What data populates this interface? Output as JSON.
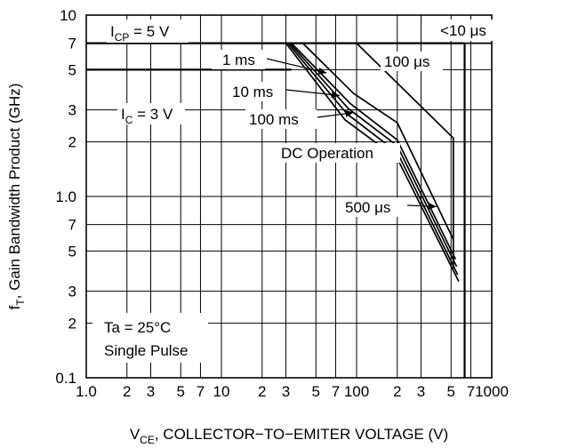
{
  "chart_data": {
    "type": "line",
    "xscale": "log",
    "yscale": "log",
    "xlim": [
      1,
      1000
    ],
    "ylim": [
      0.1,
      10
    ],
    "grid": true,
    "xlabel": {
      "main": "V",
      "sub": "CE",
      "rest": ", COLLECTOR−TO−EMITER VOLTAGE (V)"
    },
    "ylabel": {
      "main": "f",
      "sub": "T",
      "rest": ", Gain Bandwidth Product (GHz)"
    },
    "x_ticks": [
      {
        "v": 1,
        "t": "1.0"
      },
      {
        "v": 2,
        "t": "2"
      },
      {
        "v": 3,
        "t": "3"
      },
      {
        "v": 5,
        "t": "5"
      },
      {
        "v": 7,
        "t": "7"
      },
      {
        "v": 10,
        "t": "10"
      },
      {
        "v": 20,
        "t": "2"
      },
      {
        "v": 30,
        "t": "3"
      },
      {
        "v": 50,
        "t": "5"
      },
      {
        "v": 70,
        "t": "7"
      },
      {
        "v": 100,
        "t": "100"
      },
      {
        "v": 200,
        "t": "2"
      },
      {
        "v": 300,
        "t": "3"
      },
      {
        "v": 500,
        "t": "5"
      },
      {
        "v": 700,
        "t": "7"
      },
      {
        "v": 1000,
        "t": "1000"
      }
    ],
    "y_ticks": [
      {
        "v": 0.1,
        "t": "0.1"
      },
      {
        "v": 0.2,
        "t": "2"
      },
      {
        "v": 0.3,
        "t": "3"
      },
      {
        "v": 0.5,
        "t": "5"
      },
      {
        "v": 0.7,
        "t": "7"
      },
      {
        "v": 1,
        "t": "1.0"
      },
      {
        "v": 2,
        "t": "2"
      },
      {
        "v": 3,
        "t": "3"
      },
      {
        "v": 5,
        "t": "5"
      },
      {
        "v": 7,
        "t": "7"
      },
      {
        "v": 10,
        "t": "10"
      }
    ],
    "series": [
      {
        "name": "<10 μs",
        "x": [
          1,
          630,
          1000
        ],
        "y": [
          7,
          7,
          7
        ]
      },
      {
        "name": "100 μs",
        "x": [
          100,
          520,
          520
        ],
        "y": [
          7,
          2.1,
          0.4
        ]
      },
      {
        "name": "500 μs",
        "x": [
          40,
          95,
          200,
          520
        ],
        "y": [
          7,
          3.7,
          2.55,
          0.58
        ]
      },
      {
        "name": "1 ms",
        "x": [
          33,
          90,
          200,
          540
        ],
        "y": [
          7,
          3.25,
          2.05,
          0.45
        ]
      },
      {
        "name": "10 ms",
        "x": [
          32,
          87,
          200,
          550
        ],
        "y": [
          7,
          3.05,
          1.9,
          0.41
        ]
      },
      {
        "name": "100 ms",
        "x": [
          31,
          85,
          200,
          560
        ],
        "y": [
          7,
          2.85,
          1.75,
          0.37
        ]
      },
      {
        "name": "DC Operation",
        "x": [
          30,
          82,
          200,
          570
        ],
        "y": [
          7,
          2.65,
          1.62,
          0.34
        ]
      }
    ],
    "limit_lines": [
      {
        "name": "I_CP = 5 V",
        "x": [
          1,
          630
        ],
        "y": [
          7,
          7
        ]
      },
      {
        "name": "I_C = 3 V",
        "x": [
          1,
          33
        ],
        "y": [
          5,
          5
        ]
      },
      {
        "name": "V_CE max",
        "x": [
          630,
          630
        ],
        "y": [
          7,
          0.1
        ]
      }
    ],
    "annotations": {
      "icp": {
        "main": "I",
        "sub": "CP",
        "rest": " = 5 V"
      },
      "ic": {
        "main": "I",
        "sub": "C",
        "rest": " = 3 V"
      },
      "t10us": "<10 μs",
      "t100us": "100 μs",
      "t1ms": "1 ms",
      "t10ms": "10 ms",
      "t100ms": "100 ms",
      "tdc": "DC Operation",
      "t500us": "500 μs",
      "cond1": "Ta = 25°C",
      "cond2": "Single Pulse"
    }
  }
}
